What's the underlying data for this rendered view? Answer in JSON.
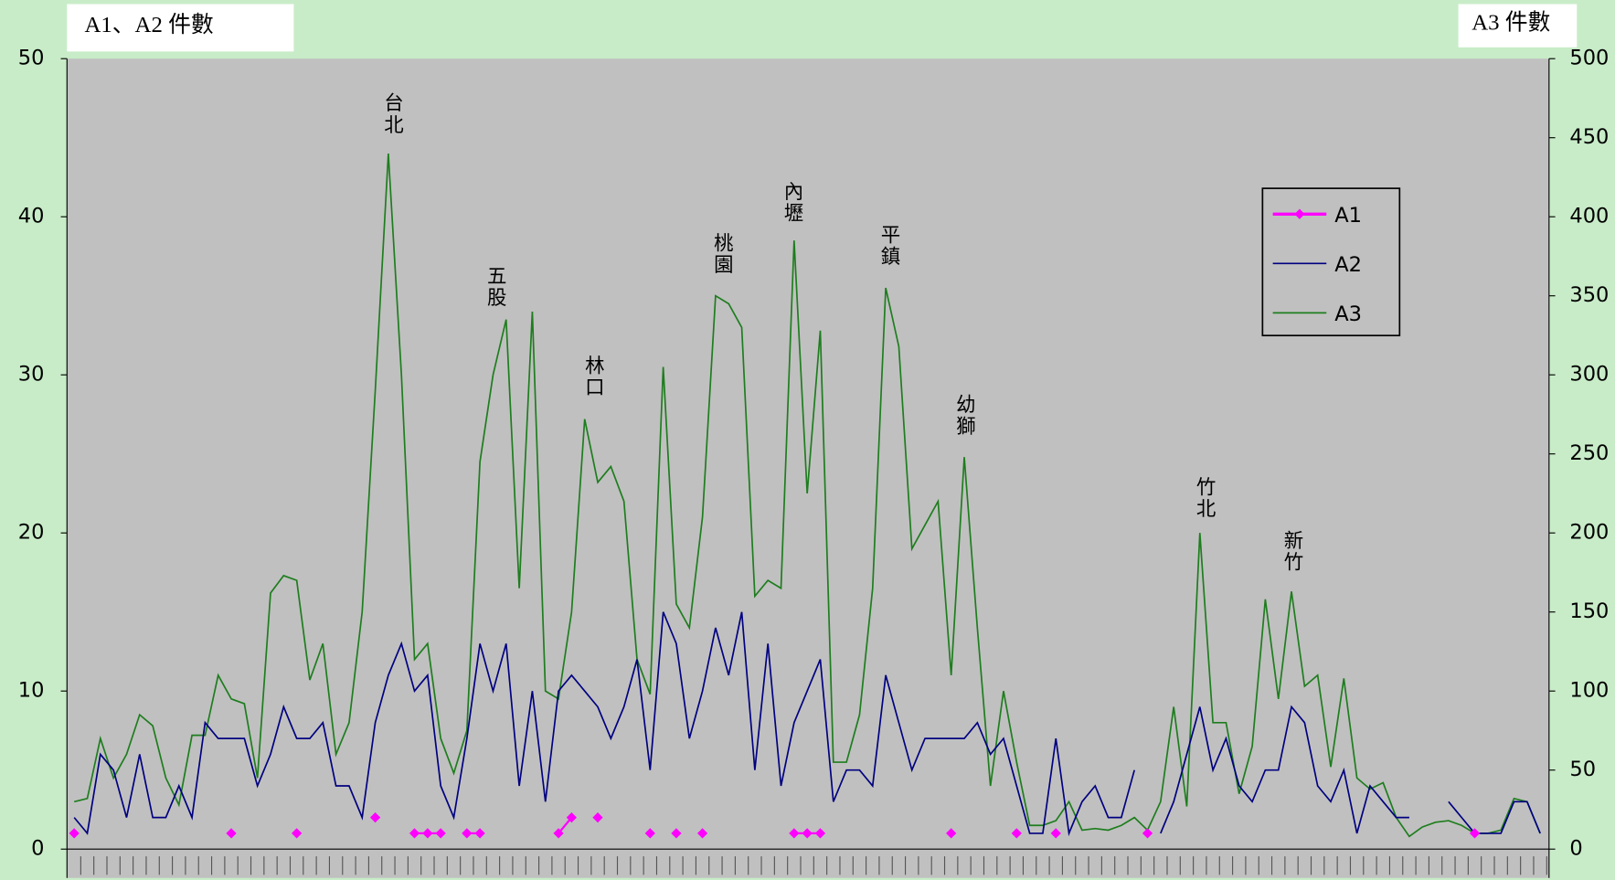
{
  "chart_data": {
    "type": "line",
    "y_label": "A1、A2 件數",
    "y2_label": "A3 件數",
    "categories": [
      null,
      null,
      null,
      null,
      null,
      null,
      null,
      null,
      null,
      null,
      null,
      null,
      null,
      null,
      null,
      null,
      null,
      null,
      null,
      null,
      null,
      null,
      null,
      null,
      null,
      null,
      null,
      null,
      null,
      null,
      null,
      null,
      null,
      null,
      null,
      null,
      null,
      null,
      null,
      null,
      null,
      null,
      null,
      null,
      null,
      null,
      null,
      null,
      null,
      null,
      null,
      null,
      null,
      null,
      null,
      null,
      null,
      null,
      null,
      null,
      null,
      null,
      null,
      null,
      null,
      null,
      null,
      null,
      null,
      null,
      null,
      null,
      null,
      null,
      null,
      null,
      null,
      null,
      null,
      null,
      null,
      null,
      null,
      null,
      null,
      null,
      null,
      null,
      null,
      null,
      null,
      null,
      null,
      null,
      null,
      null,
      null,
      null,
      null,
      null,
      null,
      null,
      null,
      null,
      null,
      null,
      null,
      null,
      null,
      null,
      null,
      null,
      null
    ],
    "series": [
      {
        "name": "A1",
        "color": "#ff00ff",
        "marker": "diamond",
        "values": [
          1,
          null,
          null,
          null,
          null,
          null,
          null,
          null,
          null,
          null,
          null,
          null,
          1,
          null,
          null,
          null,
          null,
          1,
          null,
          null,
          null,
          null,
          null,
          2,
          null,
          null,
          1,
          1,
          1,
          null,
          1,
          1,
          null,
          null,
          null,
          null,
          null,
          1,
          2,
          null,
          2,
          null,
          null,
          null,
          1,
          null,
          1,
          null,
          1,
          null,
          null,
          null,
          null,
          null,
          null,
          1,
          1,
          1,
          null,
          null,
          null,
          null,
          null,
          null,
          null,
          null,
          null,
          1,
          null,
          null,
          null,
          null,
          1,
          null,
          null,
          1,
          null,
          null,
          null,
          null,
          null,
          null,
          1,
          null,
          null,
          null,
          null,
          null,
          null,
          null,
          null,
          null,
          null,
          null,
          null,
          null,
          null,
          null,
          null,
          null,
          null,
          null,
          null,
          null,
          null,
          null,
          null,
          1,
          null,
          null,
          null,
          null,
          null
        ]
      },
      {
        "name": "A2",
        "color": "#000080",
        "values": [
          2,
          1,
          6,
          5,
          2,
          6,
          2,
          2,
          4,
          2,
          8,
          7,
          7,
          7,
          4,
          6,
          9,
          7,
          7,
          8,
          4,
          4,
          2,
          8,
          11,
          13,
          10,
          11,
          4,
          2,
          7,
          13,
          10,
          13,
          4,
          10,
          3,
          10,
          11,
          10,
          9,
          7,
          9,
          12,
          5,
          15,
          13,
          7,
          10,
          14,
          11,
          15,
          5,
          13,
          4,
          8,
          10,
          12,
          3,
          5,
          5,
          4,
          11,
          8,
          5,
          7,
          7,
          7,
          7,
          8,
          6,
          7,
          4,
          1,
          1,
          7,
          1,
          3,
          4,
          2,
          2,
          5,
          null,
          1,
          3,
          6,
          9,
          5,
          7,
          4,
          3,
          5,
          5,
          9,
          8,
          4,
          3,
          5,
          1,
          4,
          3,
          2,
          2,
          null,
          null,
          3,
          2,
          1,
          1,
          1,
          3,
          3,
          1
        ]
      },
      {
        "name": "A3",
        "color": "#1e7d1e",
        "axis": "y2",
        "values": [
          30,
          32,
          70,
          45,
          60,
          85,
          78,
          45,
          28,
          72,
          72,
          110,
          95,
          92,
          45,
          162,
          173,
          170,
          107,
          130,
          60,
          80,
          150,
          290,
          440,
          300,
          120,
          130,
          70,
          48,
          75,
          245,
          300,
          335,
          165,
          340,
          100,
          95,
          150,
          272,
          232,
          242,
          220,
          120,
          98,
          305,
          155,
          140,
          210,
          350,
          345,
          330,
          160,
          170,
          165,
          385,
          225,
          328,
          55,
          55,
          85,
          165,
          355,
          318,
          190,
          205,
          220,
          110,
          248,
          140,
          40,
          100,
          55,
          15,
          15,
          18,
          30,
          12,
          13,
          12,
          15,
          20,
          12,
          30,
          90,
          27,
          200,
          80,
          80,
          35,
          65,
          158,
          95,
          163,
          103,
          110,
          52,
          108,
          45,
          38,
          42,
          20,
          8,
          14,
          17,
          18,
          15,
          10,
          10,
          12,
          32,
          30,
          10
        ]
      }
    ],
    "ylim": [
      0,
      50
    ],
    "yticks": [
      0,
      10,
      20,
      30,
      40,
      50
    ],
    "y2lim": [
      0,
      500
    ],
    "y2ticks": [
      0,
      50,
      100,
      150,
      200,
      250,
      300,
      350,
      400,
      450,
      500
    ],
    "legend": "upper right",
    "grid": false,
    "annotations": [
      {
        "text": "台北"
      },
      {
        "text": "五股"
      },
      {
        "text": "林口"
      },
      {
        "text": "桃園"
      },
      {
        "text": "內壢"
      },
      {
        "text": "平鎮"
      },
      {
        "text": "幼獅"
      },
      {
        "text": "竹北"
      },
      {
        "text": "新竹"
      }
    ]
  }
}
